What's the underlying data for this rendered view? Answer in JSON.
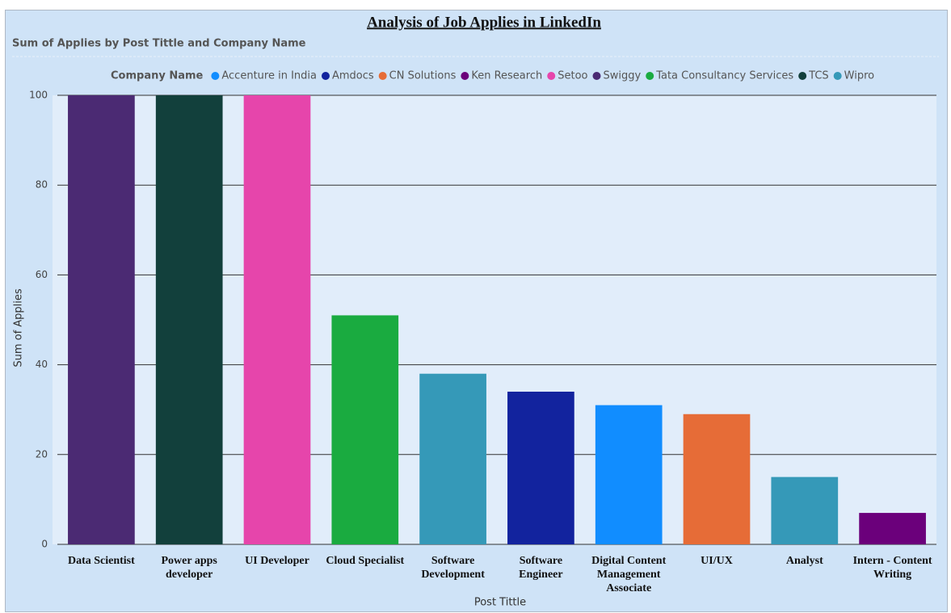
{
  "chart_data": {
    "type": "bar",
    "stacked": true,
    "title": "Analysis of Job Applies in LinkedIn",
    "subtitle": "Sum of Applies by Post Tittle and Company Name",
    "legend_title": "Company Name",
    "x_label": "Post Tittle",
    "y_label": "Sum of Applies",
    "categories": [
      "Data Scientist",
      "Power apps developer",
      "UI Developer",
      "Cloud Specialist",
      "Software Development",
      "Software Engineer",
      "Digital Content Management Associate",
      "UI/UX",
      "Analyst",
      "Intern - Content Writing"
    ],
    "series": [
      {
        "name": "Accenture in India",
        "color": "#118dff",
        "values": [
          null,
          null,
          null,
          null,
          null,
          null,
          31,
          null,
          null,
          null
        ]
      },
      {
        "name": "Amdocs",
        "color": "#12239e",
        "values": [
          null,
          null,
          null,
          null,
          null,
          34,
          null,
          null,
          null,
          null
        ]
      },
      {
        "name": "CN Solutions",
        "color": "#e66c37",
        "values": [
          null,
          null,
          null,
          null,
          null,
          null,
          null,
          29,
          null,
          null
        ]
      },
      {
        "name": "Ken Research",
        "color": "#6b007b",
        "values": [
          null,
          null,
          null,
          null,
          null,
          null,
          null,
          null,
          null,
          7
        ]
      },
      {
        "name": "Setoo",
        "color": "#e645ab",
        "values": [
          null,
          null,
          100,
          null,
          null,
          null,
          null,
          null,
          null,
          null
        ]
      },
      {
        "name": "Swiggy",
        "color": "#4b2a73",
        "values": [
          100,
          null,
          null,
          null,
          null,
          null,
          null,
          null,
          null,
          null
        ]
      },
      {
        "name": "Tata Consultancy Services",
        "color": "#1aab40",
        "values": [
          null,
          null,
          null,
          51,
          null,
          null,
          null,
          null,
          null,
          null
        ]
      },
      {
        "name": "TCS",
        "color": "#12403c",
        "values": [
          null,
          100,
          null,
          null,
          null,
          null,
          null,
          null,
          null,
          null
        ]
      },
      {
        "name": "Wipro",
        "color": "#3599b8",
        "values": [
          null,
          null,
          null,
          null,
          38,
          null,
          null,
          null,
          15,
          null
        ]
      }
    ],
    "ylim": [
      0,
      100
    ],
    "yticks": [
      0,
      20,
      40,
      60,
      80,
      100
    ],
    "grid": true
  }
}
